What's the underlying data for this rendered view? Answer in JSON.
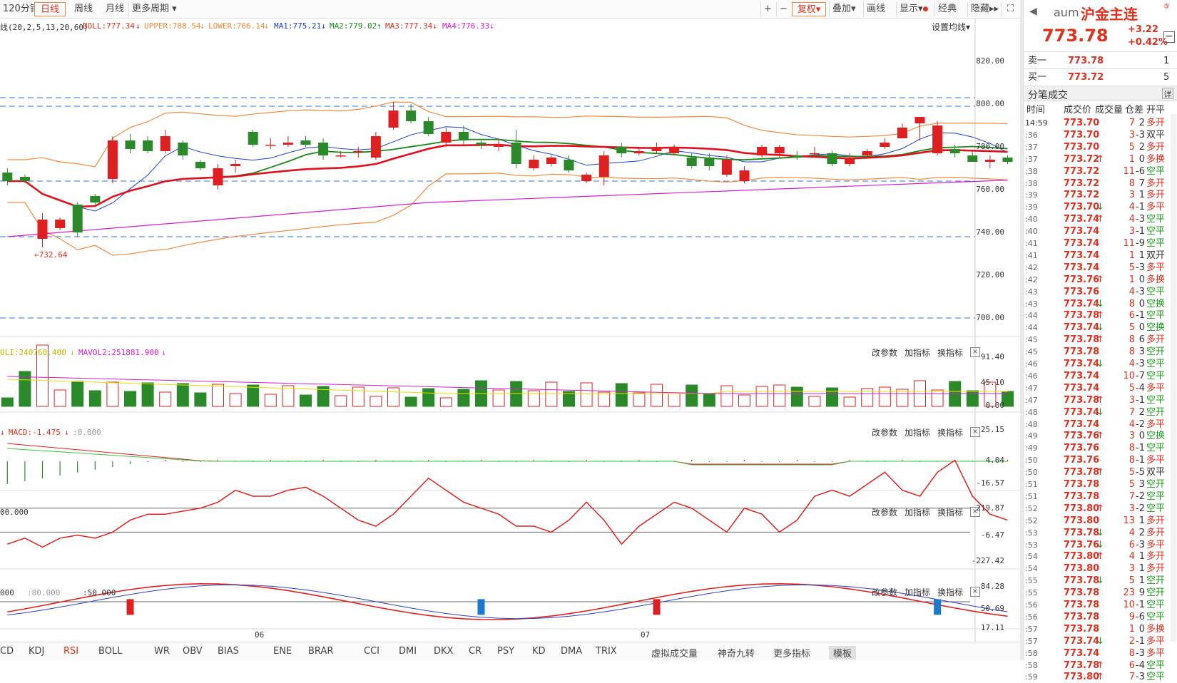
{
  "toolbar": {
    "period_120": "120分钟",
    "daily": "日线",
    "weekly": "周线",
    "monthly": "月线",
    "more_period": "更多周期",
    "plus": "+",
    "minus": "−",
    "fq": "复权",
    "overlay": "叠加",
    "draw": "画线",
    "display": "显示",
    "classic": "经典",
    "hide": "隐藏"
  },
  "main_indicator": {
    "prefix": "线(20,2,5,13,20,60)",
    "boll": "BOLL:777.34",
    "upper": "UPPER:788.54",
    "lower": "LOWER:766.14",
    "ma1": "MA1:775.21",
    "ma2": "MA2:779.02",
    "ma3": "MA3:777.34",
    "ma4": "MA4:776.33",
    "set_ma": "设置均线",
    "low_marker": "←732.64"
  },
  "price_axis": [
    "820.00",
    "800.00",
    "780.00",
    "760.00",
    "740.00",
    "720.00",
    "700.00"
  ],
  "vol_panel": {
    "label1": "OLI:240760.400",
    "label2": "MAVOL2:251881.900",
    "axis": [
      "91.40",
      "45.10",
      "0.00"
    ]
  },
  "macd_panel": {
    "label": "MACD:-1.475",
    "label2": ":0.000",
    "axis": [
      "25.15",
      "4.04",
      "-16.57"
    ]
  },
  "rsi_panel": {
    "label": "00.000",
    "axis": [
      "219.87",
      "-6.47",
      "-227.42"
    ]
  },
  "kd_panel": {
    "label1": "000",
    "label2": ":80.000",
    "label3": ":50.000",
    "axis": [
      "84.28",
      "50.69",
      "17.11"
    ]
  },
  "panel_controls": {
    "params": "改参数",
    "add": "加指标",
    "switch": "换指标",
    "close": "×"
  },
  "date_labels": [
    "06",
    "07"
  ],
  "bottom_tabs": [
    "CD",
    "KDJ",
    "RSI",
    "BOLL",
    "WR",
    "OBV",
    "BIAS",
    "ENE",
    "BRAR",
    "CCI",
    "DMI",
    "DKX",
    "CR",
    "PSY",
    "KD",
    "DMA",
    "TRIX",
    "虚拟成交量",
    "神奇九转",
    "更多指标",
    "模板"
  ],
  "quote": {
    "code": "aum",
    "name": "沪金主连",
    "price": "773.78",
    "change": "+3.22",
    "pct": "+0.42%",
    "sell_label": "卖一",
    "sell_price": "773.78",
    "sell_vol": "1",
    "buy_label": "买一",
    "buy_price": "773.72",
    "buy_vol": "5",
    "ticks_title": "分笔成交",
    "detail": "详",
    "col_time": "时间",
    "col_price": "成交价",
    "col_vol": "成交量",
    "col_oi": "仓差",
    "col_type": "开平"
  },
  "ticks": [
    [
      "14:59",
      "773.70",
      "",
      "7",
      "2",
      "多开"
    ],
    [
      ":36",
      "773.70",
      "",
      "3",
      "-3",
      "双平"
    ],
    [
      ":37",
      "773.70",
      "",
      "5",
      "2",
      "多开"
    ],
    [
      ":37",
      "773.72",
      "↑",
      "1",
      "0",
      "多换"
    ],
    [
      ":38",
      "773.72",
      "",
      "11",
      "-6",
      "空平"
    ],
    [
      ":38",
      "773.72",
      "",
      "8",
      "7",
      "多开"
    ],
    [
      ":39",
      "773.72",
      "",
      "3",
      "1",
      "多开"
    ],
    [
      ":39",
      "773.70",
      "↓",
      "4",
      "-1",
      "多平"
    ],
    [
      ":40",
      "773.74",
      "↑",
      "4",
      "-3",
      "空平"
    ],
    [
      ":40",
      "773.74",
      "",
      "3",
      "-1",
      "空平"
    ],
    [
      ":41",
      "773.74",
      "",
      "11",
      "-9",
      "空平"
    ],
    [
      ":41",
      "773.74",
      "",
      "1",
      "1",
      "双开"
    ],
    [
      ":42",
      "773.74",
      "",
      "5",
      "-3",
      "多平"
    ],
    [
      ":42",
      "773.76",
      "↑",
      "1",
      "0",
      "多换"
    ],
    [
      ":43",
      "773.76",
      "",
      "4",
      "-3",
      "空平"
    ],
    [
      ":43",
      "773.74",
      "↓",
      "8",
      "0",
      "空换"
    ],
    [
      ":44",
      "773.78",
      "↑",
      "6",
      "-1",
      "空平"
    ],
    [
      ":44",
      "773.74",
      "↓",
      "5",
      "0",
      "空换"
    ],
    [
      ":45",
      "773.78",
      "↑",
      "8",
      "6",
      "多开"
    ],
    [
      ":45",
      "773.78",
      "",
      "8",
      "3",
      "空开"
    ],
    [
      ":46",
      "773.74",
      "↓",
      "4",
      "-3",
      "空平"
    ],
    [
      ":46",
      "773.74",
      "",
      "10",
      "-7",
      "空平"
    ],
    [
      ":47",
      "773.74",
      "",
      "5",
      "-4",
      "多平"
    ],
    [
      ":47",
      "773.78",
      "↑",
      "3",
      "-1",
      "空平"
    ],
    [
      ":48",
      "773.74",
      "↓",
      "7",
      "2",
      "空开"
    ],
    [
      ":48",
      "773.74",
      "",
      "4",
      "-2",
      "多平"
    ],
    [
      ":49",
      "773.76",
      "↑",
      "3",
      "0",
      "空换"
    ],
    [
      ":49",
      "773.76",
      "",
      "8",
      "-1",
      "空平"
    ],
    [
      ":50",
      "773.76",
      "",
      "8",
      "-1",
      "多平"
    ],
    [
      ":50",
      "773.78",
      "↑",
      "5",
      "-5",
      "双平"
    ],
    [
      ":51",
      "773.78",
      "",
      "5",
      "3",
      "空开"
    ],
    [
      ":51",
      "773.78",
      "",
      "7",
      "-2",
      "空平"
    ],
    [
      ":52",
      "773.80",
      "↑",
      "3",
      "-2",
      "空平"
    ],
    [
      ":52",
      "773.80",
      "",
      "13",
      "1",
      "多开"
    ],
    [
      ":53",
      "773.78",
      "↓",
      "4",
      "2",
      "多开"
    ],
    [
      ":53",
      "773.76",
      "↓",
      "6",
      "-3",
      "多平"
    ],
    [
      ":54",
      "773.80",
      "↑",
      "4",
      "1",
      "多开"
    ],
    [
      ":54",
      "773.80",
      "",
      "3",
      "1",
      "多开"
    ],
    [
      ":55",
      "773.78",
      "↓",
      "5",
      "1",
      "空开"
    ],
    [
      ":55",
      "773.78",
      "",
      "23",
      "9",
      "空开"
    ],
    [
      ":56",
      "773.78",
      "",
      "10",
      "-1",
      "空平"
    ],
    [
      ":56",
      "773.78",
      "",
      "9",
      "-6",
      "空平"
    ],
    [
      ":57",
      "773.78",
      "",
      "1",
      "0",
      "多换"
    ],
    [
      ":57",
      "773.74",
      "↓",
      "2",
      "-1",
      "多平"
    ],
    [
      ":58",
      "773.74",
      "",
      "8",
      "-3",
      "多平"
    ],
    [
      ":58",
      "773.78",
      "↑",
      "6",
      "-4",
      "空平"
    ],
    [
      ":59",
      "773.80",
      "↑",
      "7",
      "-3",
      "空平"
    ]
  ],
  "chart_data": {
    "type": "candlestick",
    "candles": [
      [
        768,
        764,
        770,
        762
      ],
      [
        766,
        764,
        767,
        763
      ],
      [
        737,
        746,
        749,
        733
      ],
      [
        742,
        746,
        747,
        741
      ],
      [
        753,
        740,
        754,
        738
      ],
      [
        757,
        754,
        758,
        752
      ],
      [
        765,
        783,
        785,
        763
      ],
      [
        783,
        779,
        786,
        777
      ],
      [
        783,
        778,
        785,
        777
      ],
      [
        778,
        785,
        788,
        777
      ],
      [
        782,
        776,
        783,
        774
      ],
      [
        773,
        770,
        774,
        769
      ],
      [
        762,
        770,
        772,
        760
      ],
      [
        771,
        772,
        774,
        768
      ],
      [
        787,
        781,
        788,
        780
      ],
      [
        781,
        781,
        784,
        779
      ],
      [
        781,
        782,
        785,
        780
      ],
      [
        783,
        781,
        785,
        780
      ],
      [
        782,
        776,
        784,
        774
      ],
      [
        776,
        776,
        778,
        775
      ],
      [
        778,
        778,
        780,
        775
      ],
      [
        775,
        785,
        787,
        774
      ],
      [
        789,
        797,
        801,
        788
      ],
      [
        797,
        792,
        800,
        791
      ],
      [
        792,
        786,
        794,
        785
      ],
      [
        782,
        787,
        789,
        780
      ],
      [
        787,
        783,
        790,
        781
      ],
      [
        782,
        781,
        783,
        779
      ],
      [
        780,
        781,
        784,
        778
      ],
      [
        782,
        772,
        788,
        770
      ],
      [
        770,
        774,
        776,
        769
      ],
      [
        772,
        775,
        776,
        771
      ],
      [
        774,
        769,
        776,
        768
      ],
      [
        764,
        767,
        768,
        763
      ],
      [
        766,
        776,
        778,
        762
      ],
      [
        780,
        777,
        782,
        775
      ],
      [
        777,
        778,
        780,
        776
      ],
      [
        778,
        780,
        782,
        777
      ],
      [
        777,
        780,
        781,
        776
      ],
      [
        775,
        771,
        777,
        770
      ],
      [
        775,
        771,
        777,
        769
      ],
      [
        767,
        774,
        776,
        766
      ],
      [
        764,
        769,
        771,
        763
      ],
      [
        776,
        780,
        781,
        775
      ],
      [
        777,
        780,
        781,
        775
      ],
      [
        776,
        775,
        778,
        774
      ],
      [
        777,
        777,
        780,
        776
      ],
      [
        777,
        772,
        778,
        771
      ],
      [
        772,
        775,
        777,
        771
      ],
      [
        776,
        778,
        779,
        775
      ],
      [
        780,
        782,
        784,
        779
      ],
      [
        784,
        789,
        791,
        784
      ],
      [
        791,
        794,
        794,
        783
      ],
      [
        777,
        790,
        792,
        776
      ],
      [
        779,
        777,
        781,
        775
      ],
      [
        776,
        773,
        778,
        773
      ],
      [
        773,
        774,
        776,
        770
      ],
      [
        775,
        773,
        776,
        772
      ]
    ],
    "price_ylim": [
      692,
      832
    ],
    "hlines": [
      803,
      799,
      764,
      738,
      700
    ]
  }
}
